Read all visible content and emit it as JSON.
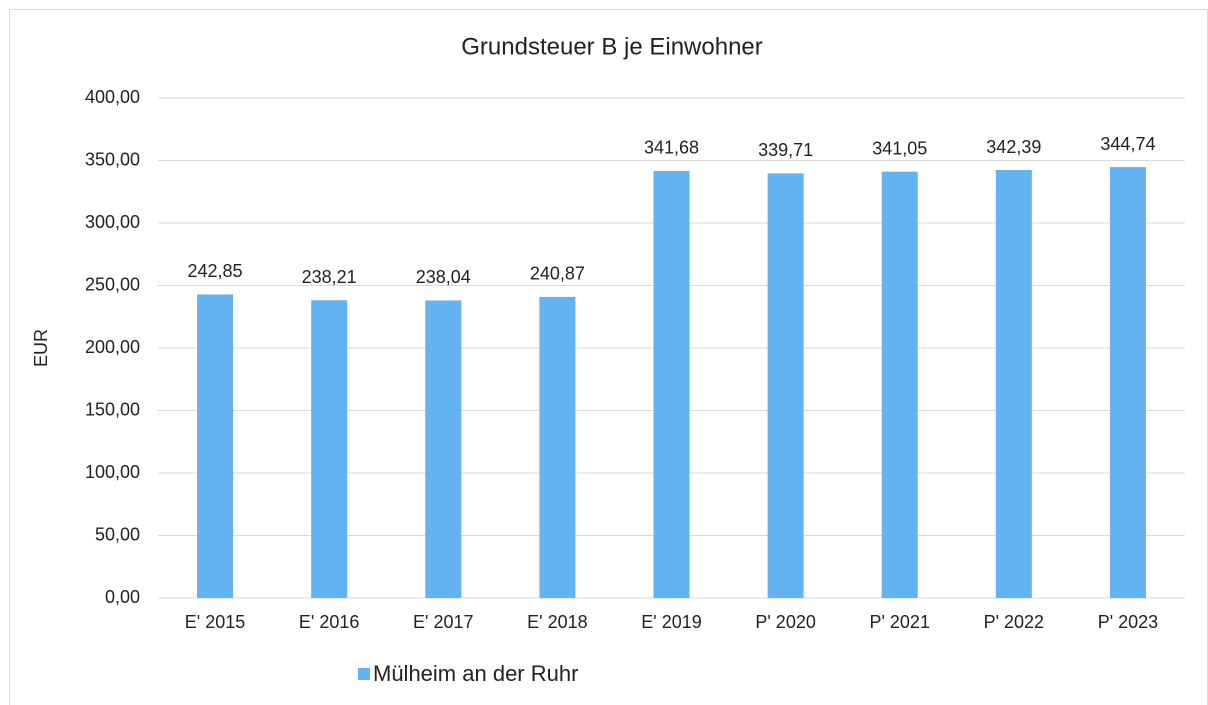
{
  "chart_data": {
    "type": "bar",
    "title": "Grundsteuer B je Einwohner",
    "y_label": "EUR",
    "categories": [
      "E' 2015",
      "E' 2016",
      "E' 2017",
      "E' 2018",
      "E' 2019",
      "P' 2020",
      "P' 2021",
      "P' 2022",
      "P' 2023"
    ],
    "series": [
      {
        "name": "Mülheim an der Ruhr",
        "color": "#63b3f2",
        "values": [
          242.85,
          238.21,
          238.04,
          240.87,
          341.68,
          339.71,
          341.05,
          342.39,
          344.74
        ],
        "value_labels": [
          "242,85",
          "238,21",
          "238,04",
          "240,87",
          "341,68",
          "339,71",
          "341,05",
          "342,39",
          "344,74"
        ]
      }
    ],
    "ylim": [
      0,
      400
    ],
    "yticks": [
      {
        "value": 0,
        "label": "0,00"
      },
      {
        "value": 50,
        "label": "50,00"
      },
      {
        "value": 100,
        "label": "100,00"
      },
      {
        "value": 150,
        "label": "150,00"
      },
      {
        "value": 200,
        "label": "200,00"
      },
      {
        "value": 250,
        "label": "250,00"
      },
      {
        "value": 300,
        "label": "300,00"
      },
      {
        "value": 350,
        "label": "350,00"
      },
      {
        "value": 400,
        "label": "400,00"
      }
    ],
    "grid": true,
    "legend": "bottom"
  }
}
